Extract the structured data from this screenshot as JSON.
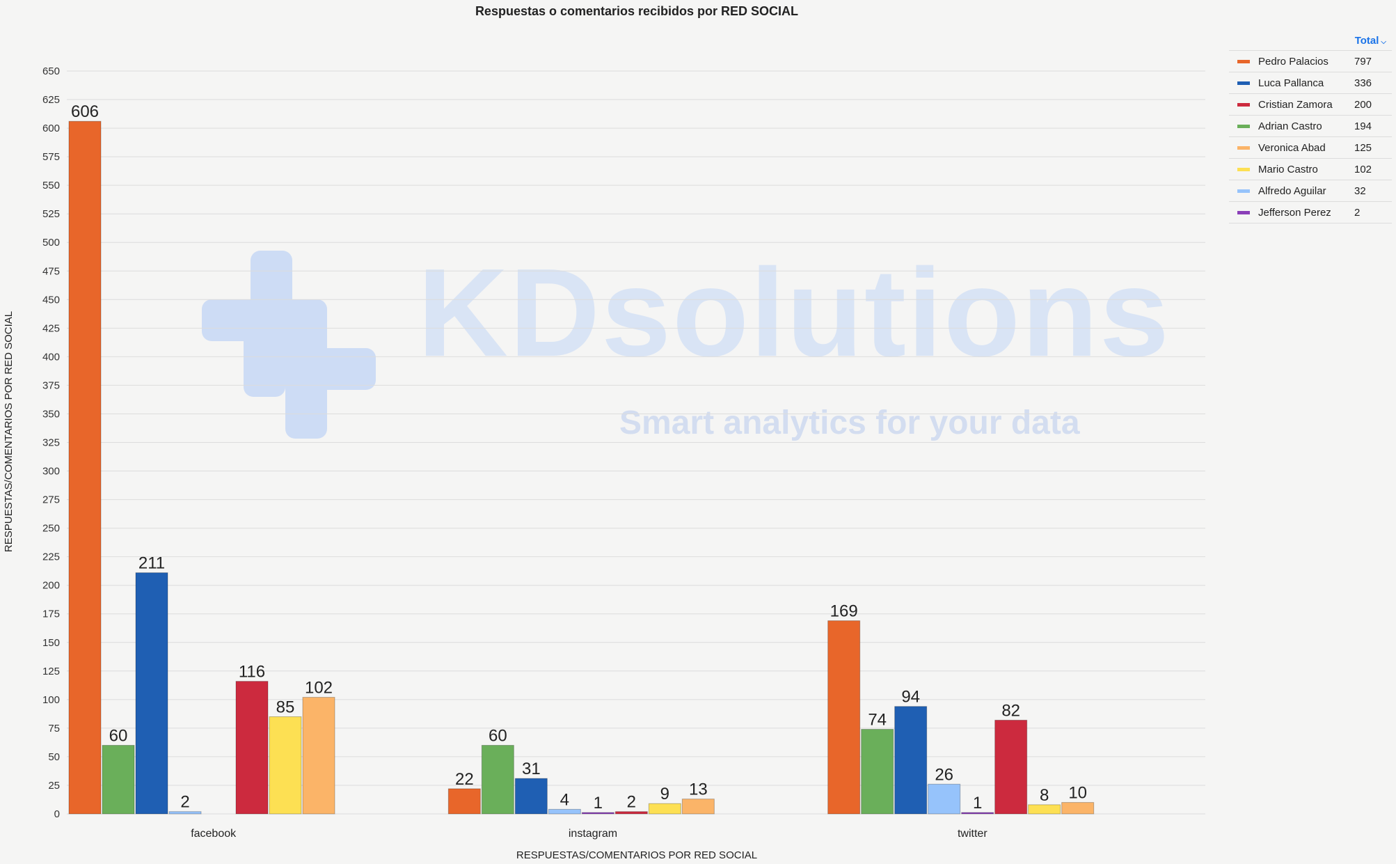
{
  "page": {
    "title": "Respuestas o comentarios recibidos por RED SOCIAL"
  },
  "watermark": {
    "logo_text": "KDsolutions",
    "tagline": "Smart analytics for your data"
  },
  "legend": {
    "header": "Total",
    "rows": [
      {
        "name": "Pedro Palacios",
        "total": "797",
        "color": "#e8662a"
      },
      {
        "name": "Luca Pallanca",
        "total": "336",
        "color": "#1f5fb3"
      },
      {
        "name": "Cristian Zamora",
        "total": "200",
        "color": "#cc2a3e"
      },
      {
        "name": "Adrian Castro",
        "total": "194",
        "color": "#6aaf5a"
      },
      {
        "name": "Veronica Abad",
        "total": "125",
        "color": "#fbb468"
      },
      {
        "name": "Mario Castro",
        "total": "102",
        "color": "#fde053"
      },
      {
        "name": "Alfredo Aguilar",
        "total": "32",
        "color": "#96c3fb"
      },
      {
        "name": "Jefferson Perez",
        "total": "2",
        "color": "#8a3fb8"
      }
    ]
  },
  "chart_data": {
    "type": "bar",
    "title": "Respuestas o comentarios recibidos por RED SOCIAL",
    "xlabel": "RESPUESTAS/COMENTARIOS POR RED SOCIAL",
    "ylabel": "RESPUESTAS/COMENTARIOS POR RED SOCIAL",
    "ylim": [
      0,
      650
    ],
    "yticks": [
      0,
      25,
      50,
      75,
      100,
      125,
      150,
      175,
      200,
      225,
      250,
      275,
      300,
      325,
      350,
      375,
      400,
      425,
      450,
      475,
      500,
      525,
      550,
      575,
      600,
      625,
      650
    ],
    "grid": true,
    "legend_position": "right",
    "categories": [
      "facebook",
      "instagram",
      "twitter"
    ],
    "series": [
      {
        "name": "Pedro Palacios",
        "color": "#e8662a",
        "values": [
          606,
          22,
          169
        ]
      },
      {
        "name": "Adrian Castro",
        "color": "#6aaf5a",
        "values": [
          60,
          60,
          74
        ]
      },
      {
        "name": "Luca Pallanca",
        "color": "#1f5fb3",
        "values": [
          211,
          31,
          94
        ]
      },
      {
        "name": "Alfredo Aguilar",
        "color": "#96c3fb",
        "values": [
          2,
          4,
          26
        ]
      },
      {
        "name": "Jefferson Perez",
        "color": "#8a3fb8",
        "values": [
          null,
          1,
          1
        ]
      },
      {
        "name": "Cristian Zamora",
        "color": "#cc2a3e",
        "values": [
          116,
          2,
          82
        ]
      },
      {
        "name": "Mario Castro",
        "color": "#fde053",
        "values": [
          85,
          9,
          8
        ]
      },
      {
        "name": "Veronica Abad",
        "color": "#fbb468",
        "values": [
          102,
          13,
          10
        ]
      }
    ]
  }
}
